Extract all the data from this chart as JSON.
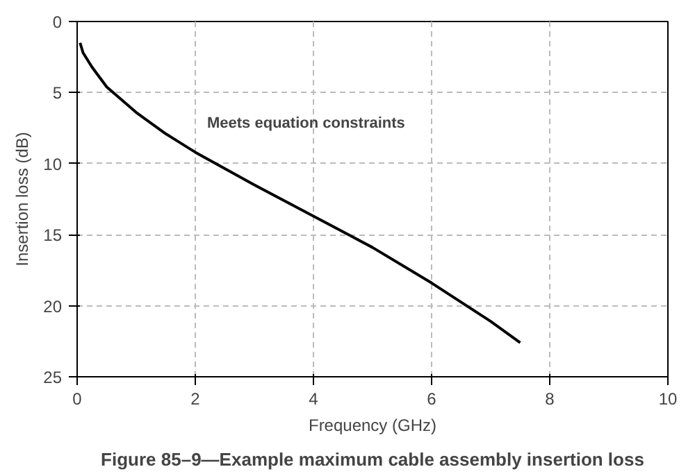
{
  "chart_data": {
    "type": "line",
    "xlabel": "Frequency (GHz)",
    "ylabel": "Insertion loss (dB)",
    "annotations": [
      "Meets equation constraints",
      "Figure 85–9—Example maximum cable assembly insertion loss"
    ],
    "x": [
      0.05,
      0.1,
      0.25,
      0.5,
      1,
      1.5,
      2,
      3,
      4,
      5,
      6,
      7,
      7.5
    ],
    "series": [
      {
        "color": "#000000",
        "values": [
          1.5,
          2.2,
          3.2,
          4.6,
          6.4,
          7.9,
          9.2,
          11.5,
          13.7,
          15.9,
          18.4,
          21.1,
          22.6
        ]
      }
    ],
    "xlim": [
      0,
      10
    ],
    "ylim": [
      25,
      0
    ],
    "xticks": [
      0,
      2,
      4,
      6,
      8,
      10
    ],
    "yticks": [
      0,
      5,
      10,
      15,
      20,
      25
    ],
    "grid": true,
    "line_style": "solid"
  }
}
